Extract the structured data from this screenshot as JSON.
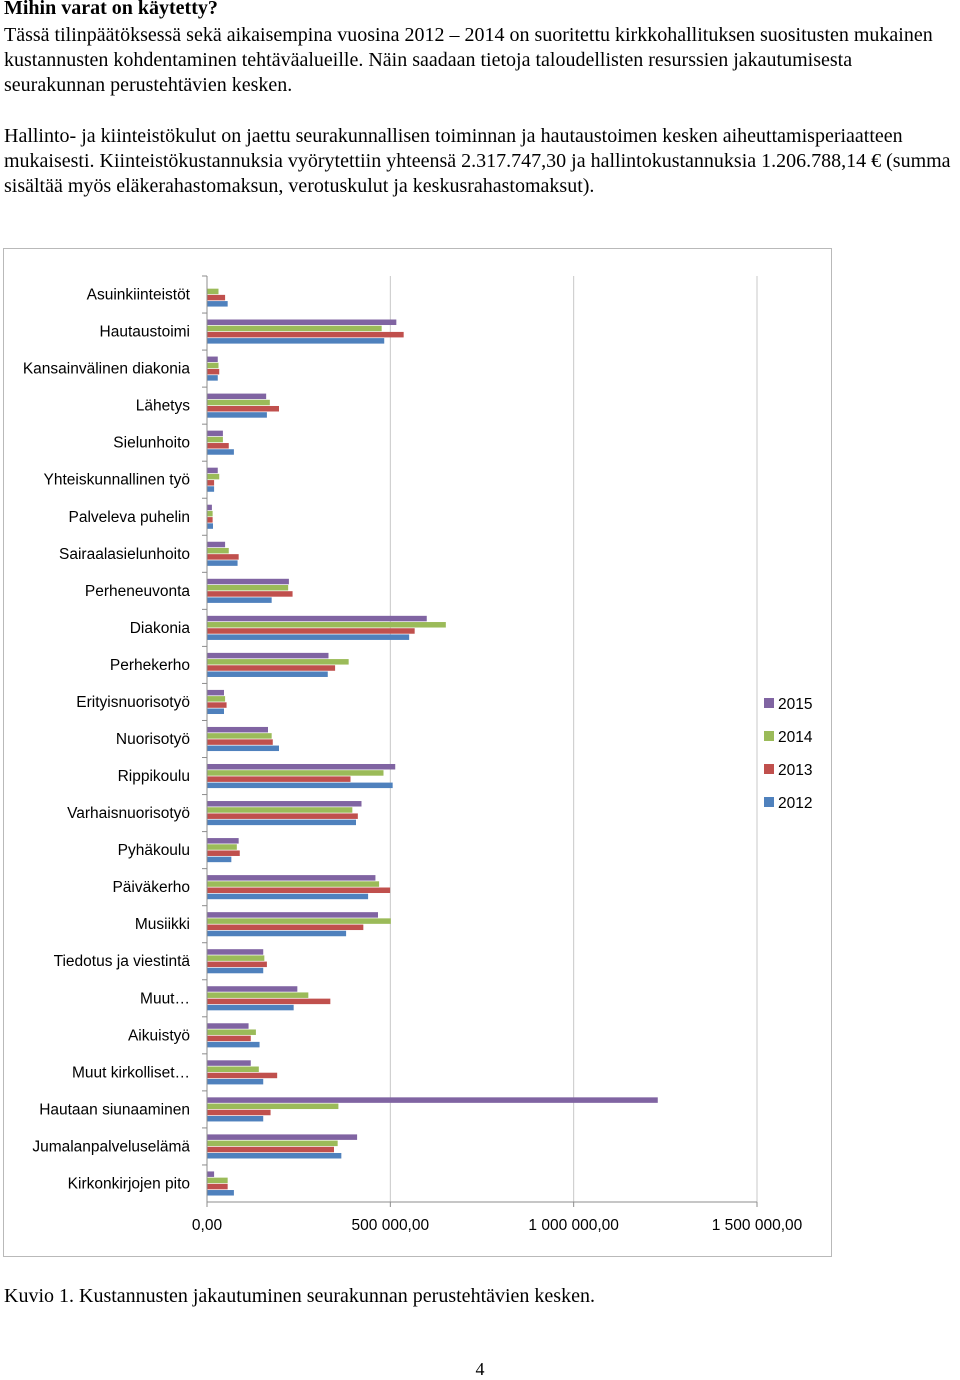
{
  "heading": "Mihin varat on käytetty?",
  "paragraphs": [
    "Tässä tilinpäätöksessä sekä aikaisempina vuosina 2012 – 2014 on suoritettu kirkkohallituksen suositusten mukainen kustannusten kohdentaminen tehtäväalueille. Näin saadaan tietoja taloudellisten resurssien jakautumisesta seurakunnan perustehtävien kesken.",
    "Hallinto- ja kiinteistökulut on jaettu seurakunnallisen toiminnan ja hautaustoimen kesken aiheuttamisperiaatteen mukaisesti. Kiinteistökustannuksia vyörytettiin yhteensä 2.317.747,30 ja hallintokustannuksia 1.206.788,14 € (summa sisältää myös eläkerahastomaksun, verotuskulut ja keskusrahastomaksut)."
  ],
  "chart_data": {
    "type": "bar",
    "orientation": "horizontal",
    "categories": [
      "Asuinkiinteistöt",
      "Hautaustoimi",
      "Kansainvälinen diakonia",
      "Lähetys",
      "Sielunhoito",
      "Yhteiskunnallinen työ",
      "Palveleva puhelin",
      "Sairaalasielunhoito",
      "Perheneuvonta",
      "Diakonia",
      "Perhekerho",
      "Erityisnuorisotyö",
      "Nuorisotyö",
      "Rippikoulu",
      "Varhaisnuorisotyö",
      "Pyhäkoulu",
      "Päiväkerho",
      "Musiikki",
      "Tiedotus ja viestintä",
      "Muut…",
      "Aikuistyö",
      "Muut kirkolliset…",
      "Hautaan siunaaminen",
      "Jumalanpalveluselämä",
      "Kirkonkirjojen pito"
    ],
    "series": [
      {
        "name": "2015",
        "color": "#8064a2",
        "values": [
          0,
          515000,
          28000,
          160000,
          42000,
          28000,
          12000,
          48000,
          222000,
          598000,
          330000,
          45000,
          165000,
          512000,
          420000,
          85000,
          458000,
          465000,
          152000,
          245000,
          112000,
          118000,
          1228000,
          408000,
          18000
        ]
      },
      {
        "name": "2014",
        "color": "#9bbb59",
        "values": [
          30000,
          475000,
          30000,
          170000,
          42000,
          32000,
          14000,
          58000,
          220000,
          650000,
          385000,
          48000,
          175000,
          480000,
          395000,
          80000,
          468000,
          500000,
          155000,
          275000,
          132000,
          140000,
          357000,
          355000,
          55000
        ]
      },
      {
        "name": "2013",
        "color": "#c0504d",
        "values": [
          48000,
          535000,
          32000,
          195000,
          58000,
          18000,
          14000,
          85000,
          232000,
          565000,
          348000,
          52000,
          178000,
          390000,
          410000,
          88000,
          498000,
          425000,
          162000,
          335000,
          118000,
          190000,
          172000,
          345000,
          55000
        ]
      },
      {
        "name": "2012",
        "color": "#4f81bd",
        "values": [
          55000,
          482000,
          28000,
          162000,
          72000,
          18000,
          15000,
          82000,
          175000,
          550000,
          328000,
          45000,
          195000,
          505000,
          405000,
          65000,
          438000,
          378000,
          152000,
          235000,
          142000,
          152000,
          152000,
          365000,
          72000
        ]
      }
    ],
    "xlim": [
      0,
      1500000
    ],
    "x_ticks": [
      0,
      500000,
      1000000,
      1500000
    ],
    "x_tick_labels": [
      "0,00",
      "500 000,00",
      "1 000 000,00",
      "1 500 000,00"
    ],
    "legend": {
      "placement": "right",
      "order": [
        "2015",
        "2014",
        "2013",
        "2012"
      ]
    },
    "grid": "vertical major gridlines"
  },
  "caption": "Kuvio 1. Kustannusten jakautuminen seurakunnan perustehtävien kesken.",
  "page_number": "4"
}
